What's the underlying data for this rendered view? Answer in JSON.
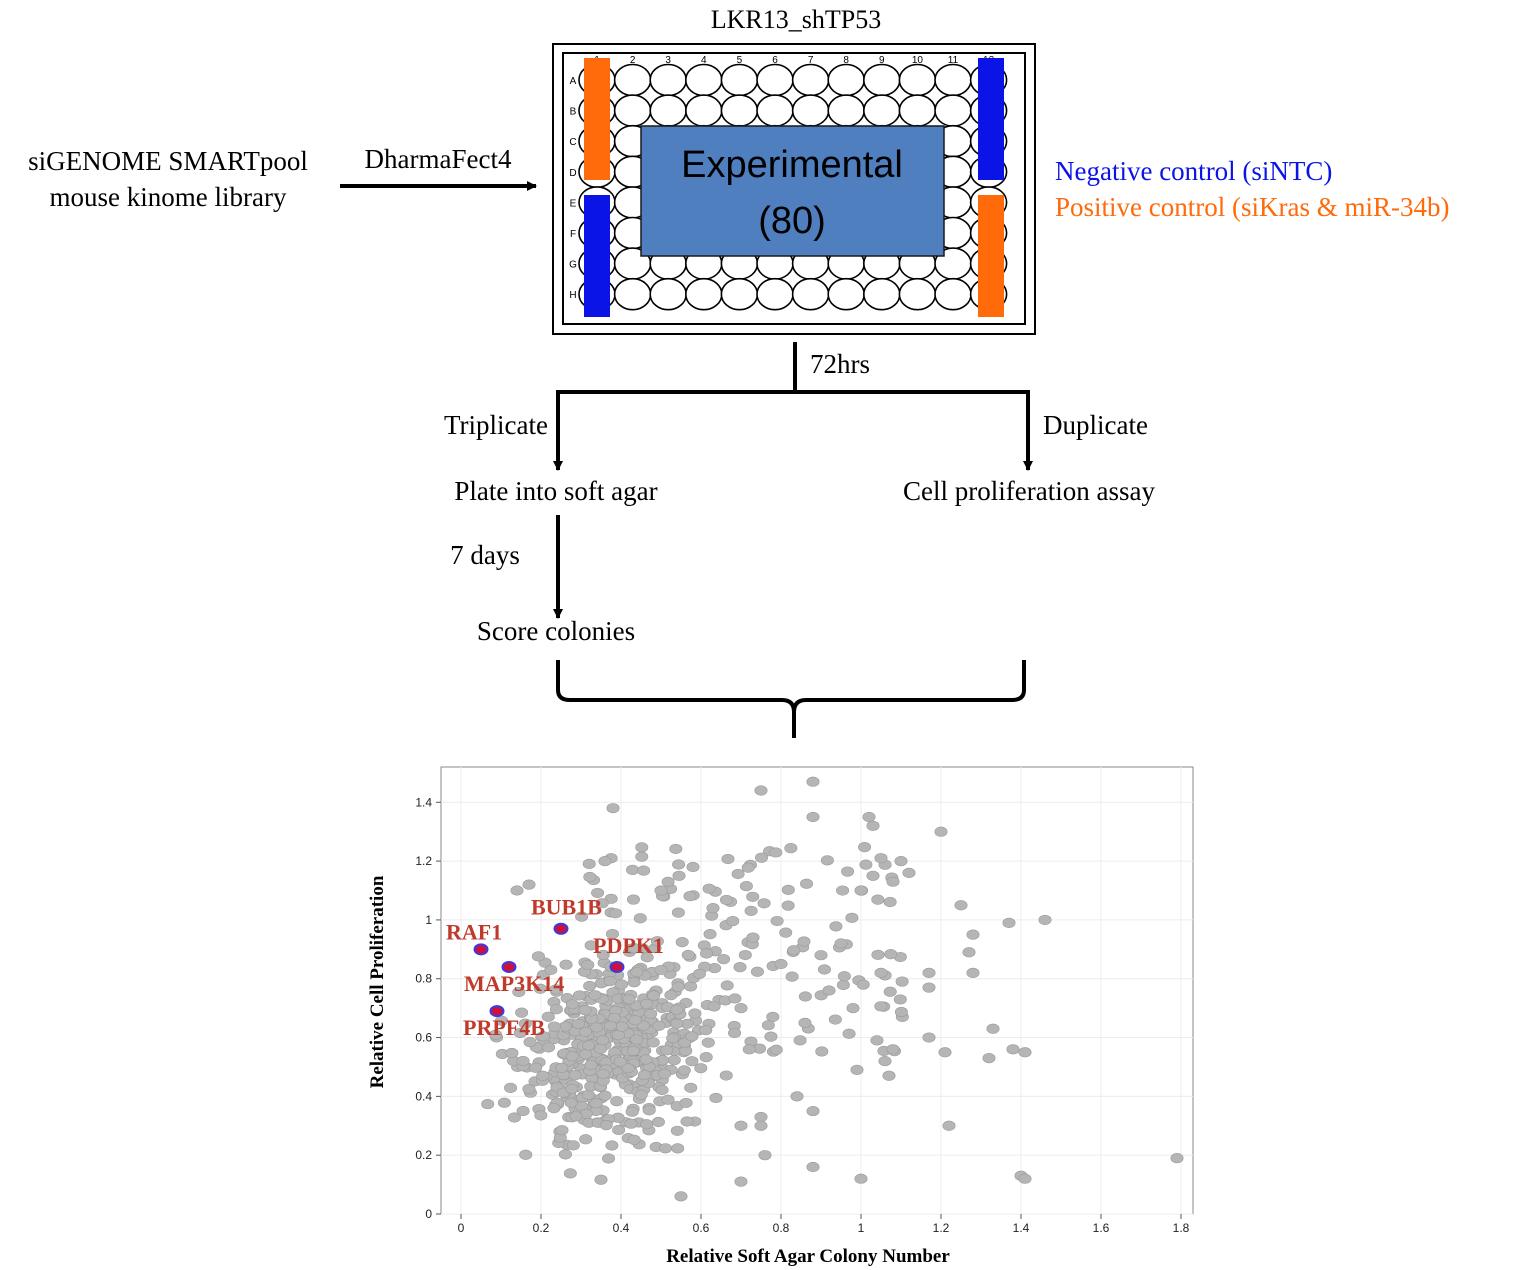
{
  "plate": {
    "title": "LKR13_shTP53",
    "column_labels": [
      "1",
      "2",
      "3",
      "4",
      "5",
      "6",
      "7",
      "8",
      "9",
      "10",
      "11",
      "12"
    ],
    "row_labels": [
      "A",
      "B",
      "C",
      "D",
      "E",
      "F",
      "G",
      "H"
    ],
    "experimental_label": "Experimental",
    "experimental_count": "(80)",
    "colors": {
      "negative": "#0a14e6",
      "positive": "#ff6a0a",
      "experimental_fill": "#4f7fbf"
    }
  },
  "library": {
    "line1": "siGENOME SMARTpool",
    "line2": "mouse kinome library"
  },
  "transfection_label": "DharmaFect4",
  "legend": {
    "negative": "Negative control (siNTC)",
    "positive": "Positive control (siKras & miR-34b)"
  },
  "flow": {
    "incubation": "72hrs",
    "left_branch": "Triplicate",
    "right_branch": "Duplicate",
    "soft_agar": "Plate into soft agar",
    "proliferation": "Cell proliferation assay",
    "wait": "7 days",
    "score": "Score colonies"
  },
  "chart_data": {
    "type": "scatter",
    "xlabel": "Relative Soft Agar Colony Number",
    "ylabel": "Relative Cell Proliferation",
    "xlim": [
      -0.05,
      1.83
    ],
    "ylim": [
      0,
      1.52
    ],
    "xticks": [
      "0",
      "0.2",
      "0.4",
      "0.6",
      "0.8",
      "1",
      "1.2",
      "1.4",
      "1.6",
      "1.8"
    ],
    "yticks": [
      "0",
      "0.2",
      "0.4",
      "0.6",
      "0.8",
      "1",
      "1.2",
      "1.4"
    ],
    "grid": true,
    "point_color": "#b5b5b5",
    "highlight_color": "#c0392b",
    "highlighted": [
      {
        "name": "RAF1",
        "x": 0.05,
        "y": 0.9
      },
      {
        "name": "BUB1B",
        "x": 0.25,
        "y": 0.97
      },
      {
        "name": "PDPK1",
        "x": 0.39,
        "y": 0.84
      },
      {
        "name": "MAP3K14",
        "x": 0.12,
        "y": 0.84
      },
      {
        "name": "PRPF4B",
        "x": 0.09,
        "y": 0.69
      }
    ],
    "points": [
      [
        0.75,
        1.44
      ],
      [
        0.88,
        1.47
      ],
      [
        1.02,
        1.35
      ],
      [
        1.2,
        1.3
      ],
      [
        0.38,
        1.38
      ],
      [
        0.88,
        1.35
      ],
      [
        1.03,
        1.32
      ],
      [
        1.05,
        1.21
      ],
      [
        1.1,
        1.2
      ],
      [
        1.03,
        1.15
      ],
      [
        1.08,
        1.13
      ],
      [
        1.12,
        1.16
      ],
      [
        1.0,
        1.1
      ],
      [
        1.25,
        1.05
      ],
      [
        1.37,
        0.99
      ],
      [
        1.46,
        1.0
      ],
      [
        1.28,
        0.95
      ],
      [
        1.27,
        0.89
      ],
      [
        1.28,
        0.82
      ],
      [
        1.17,
        0.82
      ],
      [
        1.17,
        0.77
      ],
      [
        1.33,
        0.63
      ],
      [
        1.17,
        0.6
      ],
      [
        1.21,
        0.55
      ],
      [
        1.32,
        0.53
      ],
      [
        1.38,
        0.56
      ],
      [
        1.41,
        0.55
      ],
      [
        1.08,
        0.56
      ],
      [
        1.06,
        0.52
      ],
      [
        1.07,
        0.47
      ],
      [
        0.99,
        0.49
      ],
      [
        0.84,
        0.4
      ],
      [
        0.88,
        0.35
      ],
      [
        0.75,
        0.33
      ],
      [
        0.75,
        0.3
      ],
      [
        0.7,
        0.3
      ],
      [
        0.76,
        0.2
      ],
      [
        0.88,
        0.16
      ],
      [
        0.7,
        0.11
      ],
      [
        1.0,
        0.12
      ],
      [
        1.22,
        0.3
      ],
      [
        1.4,
        0.13
      ],
      [
        1.41,
        0.12
      ],
      [
        1.79,
        0.19
      ],
      [
        0.55,
        0.06
      ],
      [
        0.42,
        0.73
      ],
      [
        0.63,
        1.04
      ],
      [
        0.58,
        1.18
      ],
      [
        0.5,
        1.1
      ],
      [
        0.36,
        1.2
      ],
      [
        0.17,
        1.12
      ],
      [
        0.14,
        1.1
      ],
      [
        0.73,
        0.94
      ],
      [
        0.8,
        0.85
      ],
      [
        0.92,
        0.76
      ],
      [
        0.9,
        0.88
      ],
      [
        0.95,
        0.92
      ],
      [
        1.05,
        0.82
      ],
      [
        0.98,
        0.7
      ],
      [
        0.86,
        0.65
      ],
      [
        0.7,
        0.7
      ]
    ],
    "cloud": {
      "core": {
        "count": 470,
        "x": [
          0.02,
          0.72
        ],
        "y": [
          0.1,
          1.0
        ]
      },
      "mid": {
        "count": 150,
        "x": [
          0.3,
          1.12
        ],
        "y": [
          0.55,
          1.25
        ]
      }
    }
  }
}
